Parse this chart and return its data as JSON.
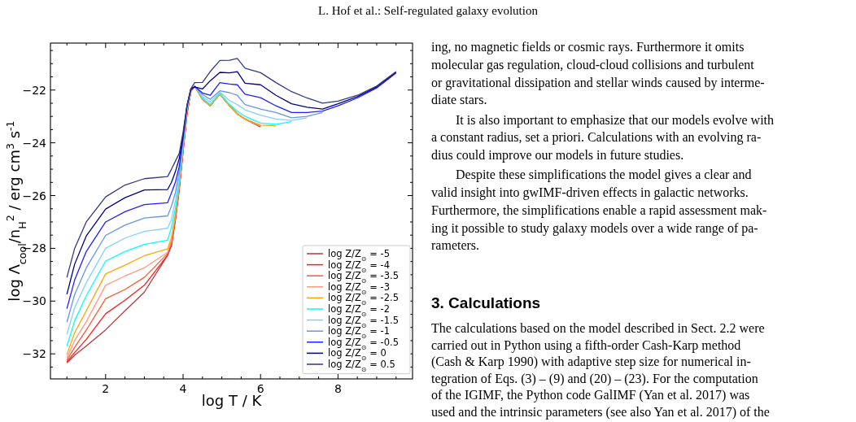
{
  "chart_data": {
    "type": "line",
    "xlabel": "log T / K",
    "ylabel": "log Λ$_{cool}$/n$_{H}$$^{2}$ / erg cm$^{3}$ s$^{-1}$",
    "x": [
      1,
      1.2,
      1.5,
      2,
      2.5,
      3,
      3.6,
      3.7,
      3.8,
      3.9,
      4.0,
      4.1,
      4.2,
      4.3,
      4.5,
      4.7,
      4.95,
      5.2,
      5.4,
      5.6,
      6.0,
      6.4,
      6.8,
      7.2,
      7.6,
      8.0,
      8.5,
      9.0,
      9.5
    ],
    "xlim": [
      0.575,
      9.925
    ],
    "ylim": [
      -32.95,
      -20.22
    ],
    "xticks": [
      {
        "value": 1,
        "label": null
      },
      {
        "value": 1.5,
        "label": null
      },
      2,
      {
        "value": 2.5,
        "label": null
      },
      {
        "value": 3,
        "label": null
      },
      {
        "value": 3.5,
        "label": null
      },
      4,
      {
        "value": 4.5,
        "label": null
      },
      {
        "value": 5,
        "label": null
      },
      {
        "value": 5.5,
        "label": null
      },
      6,
      {
        "value": 6.5,
        "label": null
      },
      {
        "value": 7,
        "label": null
      },
      {
        "value": 7.5,
        "label": null
      },
      8,
      {
        "value": 8.5,
        "label": null
      },
      {
        "value": 9,
        "label": null
      },
      {
        "value": 9.5,
        "label": null
      }
    ],
    "yticks": [
      {
        "value": -32.5,
        "label": null
      },
      -32,
      {
        "value": -31.5,
        "label": null
      },
      {
        "value": -31,
        "label": null
      },
      {
        "value": -30.5,
        "label": null
      },
      -30,
      {
        "value": -29.5,
        "label": null
      },
      {
        "value": -29,
        "label": null
      },
      {
        "value": -28.5,
        "label": null
      },
      -28,
      {
        "value": -27.5,
        "label": null
      },
      {
        "value": -27,
        "label": null
      },
      {
        "value": -26.5,
        "label": null
      },
      -26,
      {
        "value": -25.5,
        "label": null
      },
      {
        "value": -25,
        "label": null
      },
      {
        "value": -24.5,
        "label": null
      },
      -24,
      {
        "value": -23.5,
        "label": null
      },
      {
        "value": -23,
        "label": null
      },
      {
        "value": -22.5,
        "label": null
      },
      -22,
      {
        "value": -21.5,
        "label": null
      },
      {
        "value": -21,
        "label": null
      },
      {
        "value": -20.5,
        "label": null
      }
    ],
    "grid": false,
    "legend": "bottom right",
    "series": [
      {
        "name": "log Z/Z$_{⊙}$ = -5",
        "color": "#b33a3a",
        "values": [
          -32.34,
          -32.05,
          -31.7,
          -31.09,
          -30.37,
          -29.66,
          -28.26,
          -27.9,
          -26.95,
          -25.8,
          -24.35,
          -22.95,
          -22.05,
          -21.86,
          -22.35,
          -22.6,
          -22.15,
          -22.6,
          -22.9,
          -23.1,
          -23.4,
          null,
          null,
          null,
          null,
          null,
          null,
          null,
          null
        ]
      },
      {
        "name": "log Z/Z$_{⊙}$ = -4",
        "color": "#ff1a1a",
        "values": [
          -32.3,
          -31.95,
          -31.45,
          -30.48,
          -29.97,
          -29.4,
          -28.26,
          -27.85,
          -26.9,
          -25.75,
          -24.3,
          -22.9,
          -22.04,
          -21.86,
          -22.35,
          -22.6,
          -22.15,
          -22.6,
          -22.9,
          -23.1,
          -23.38,
          null,
          null,
          null,
          null,
          null,
          null,
          null,
          null
        ]
      },
      {
        "name": "log Z/Z$_{⊙}$ = -3.5",
        "color": "#ff5533",
        "values": [
          -32.24,
          -31.75,
          -31.1,
          -29.91,
          -29.56,
          -29.1,
          -28.2,
          -27.8,
          -26.85,
          -25.7,
          -24.25,
          -22.85,
          -22.03,
          -21.86,
          -22.35,
          -22.6,
          -22.15,
          -22.6,
          -22.9,
          -23.1,
          -23.37,
          null,
          null,
          null,
          null,
          null,
          null,
          null,
          null
        ]
      },
      {
        "name": "log Z/Z$_{⊙}$ = -3",
        "color": "#ff9980",
        "values": [
          -32.16,
          -31.5,
          -30.78,
          -29.4,
          -29.05,
          -28.74,
          -28.15,
          -27.7,
          -26.8,
          -25.65,
          -24.2,
          -22.8,
          -22.02,
          -21.86,
          -22.35,
          -22.6,
          -22.15,
          -22.6,
          -22.9,
          -23.1,
          -23.36,
          null,
          null,
          null,
          null,
          null,
          null,
          null,
          null
        ]
      },
      {
        "name": "log Z/Z$_{⊙}$ = -2.5",
        "color": "#ffa500",
        "values": [
          -32.03,
          -31.2,
          -30.37,
          -28.97,
          -28.64,
          -28.28,
          -28.02,
          -27.6,
          -26.7,
          -25.6,
          -24.15,
          -22.75,
          -22.01,
          -21.86,
          -22.35,
          -22.6,
          -22.15,
          -22.6,
          -22.9,
          -23.1,
          -23.33,
          -23.35,
          null,
          null,
          null,
          null,
          null,
          null,
          null
        ]
      },
      {
        "name": "log Z/Z$_{⊙}$ = -2",
        "color": "#00ffff",
        "values": [
          -31.7,
          -30.75,
          -29.8,
          -28.48,
          -28.12,
          -27.85,
          -27.69,
          -27.2,
          -26.5,
          -25.5,
          -24.1,
          -22.72,
          -22.0,
          -21.86,
          -22.3,
          -22.55,
          -22.12,
          -22.55,
          -22.8,
          -23.0,
          -23.25,
          -23.3,
          -23.2,
          null,
          null,
          null,
          null,
          null,
          null
        ]
      },
      {
        "name": "log Z/Z$_{⊙}$ = -1.5",
        "color": "#87cefa",
        "values": [
          -31.26,
          -30.25,
          -29.3,
          -28.0,
          -27.61,
          -27.36,
          -27.24,
          -26.9,
          -26.2,
          -25.3,
          -24.0,
          -22.7,
          -21.99,
          -21.86,
          -22.25,
          -22.45,
          -22.08,
          -22.4,
          -22.55,
          -22.75,
          -22.95,
          -23.1,
          -23.15,
          -23.05,
          null,
          null,
          null,
          null,
          null
        ]
      },
      {
        "name": "log Z/Z$_{⊙}$ = -1",
        "color": "#6495ed",
        "values": [
          -30.8,
          -29.75,
          -28.74,
          -27.51,
          -27.12,
          -26.85,
          -26.77,
          -26.4,
          -25.9,
          -25.1,
          -23.9,
          -22.68,
          -21.98,
          -21.86,
          -22.17,
          -22.35,
          -22.03,
          -22.1,
          -22.2,
          -22.55,
          -22.72,
          -22.85,
          -23.05,
          -23.0,
          -22.85,
          null,
          null,
          null,
          null
        ]
      },
      {
        "name": "log Z/Z$_{⊙}$ = -0.5",
        "color": "#2020ff",
        "values": [
          -30.29,
          -29.2,
          -28.12,
          -27.0,
          -26.61,
          -26.34,
          -26.27,
          -25.9,
          -25.5,
          -24.9,
          -23.8,
          -22.6,
          -22.0,
          -21.86,
          -22.11,
          -22.2,
          -21.72,
          -21.77,
          -21.8,
          -22.16,
          -22.29,
          -22.6,
          -22.85,
          -22.85,
          -22.8,
          -22.6,
          -22.3,
          -21.92,
          -21.35
        ]
      },
      {
        "name": "log Z/Z$_{⊙}$ = 0",
        "color": "#000080",
        "values": [
          -29.74,
          -28.6,
          -27.53,
          -26.51,
          -26.08,
          -25.79,
          -25.77,
          -25.5,
          -25.1,
          -24.6,
          -23.7,
          -22.6,
          -21.95,
          -21.88,
          -21.96,
          -21.65,
          -21.33,
          -21.35,
          -21.3,
          -21.74,
          -21.8,
          -22.2,
          -22.52,
          -22.65,
          -22.72,
          -22.52,
          -22.25,
          -21.88,
          -21.32
        ]
      },
      {
        "name": "log Z/Z$_{⊙}$ = 0.5",
        "color": "#35397e",
        "values": [
          -29.1,
          -28.0,
          -27.0,
          -26.05,
          -25.6,
          -25.36,
          -25.28,
          -25.0,
          -24.7,
          -24.4,
          -23.6,
          -22.6,
          -21.95,
          -21.72,
          -21.71,
          -21.3,
          -20.88,
          -20.87,
          -20.8,
          -21.17,
          -21.34,
          -21.72,
          -22.06,
          -22.3,
          -22.5,
          -22.42,
          -22.2,
          -21.85,
          -21.3
        ]
      }
    ],
    "annotations": [
      "L. Hof et al.: Self-regulated galaxy evolution",
      "ing, no magnetic fields or cosmic rays. Furthermore it omits",
      "molecular gas regulation, cloud-cloud collisions and turbulent",
      "or gravitational dissipation and stellar winds caused by interme-",
      "diate stars.",
      "It is also important to emphasize that our models evolve with",
      "a constant radius, set a priori. Calculations with an evolving ra-",
      "dius could improve our models in future studies.",
      "Despite these simplifications the model gives a clear and",
      "valid insight into gwIMF-driven effects in galactic networks.",
      "Furthermore, the simplifications enable a rapid assessment mak-",
      "ing it possible to study galaxy models over a wide range of pa-",
      "rameters.",
      "3. Calculations",
      "The calculations based on the model described in Sect. 2.2 were",
      "carried out in Python using a fifth-order Cash-Karp method",
      "(Cash & Karp 1990) with adaptive step size for numerical in-",
      "tegration of Eqs. (3) – (9) and (20) – (23). For the computation",
      "of the IGIMF, the Python code GalIMF (Yan et al. 2017) was",
      "used and the intrinsic parameters (see also Yan et al. 2017) of the"
    ]
  }
}
